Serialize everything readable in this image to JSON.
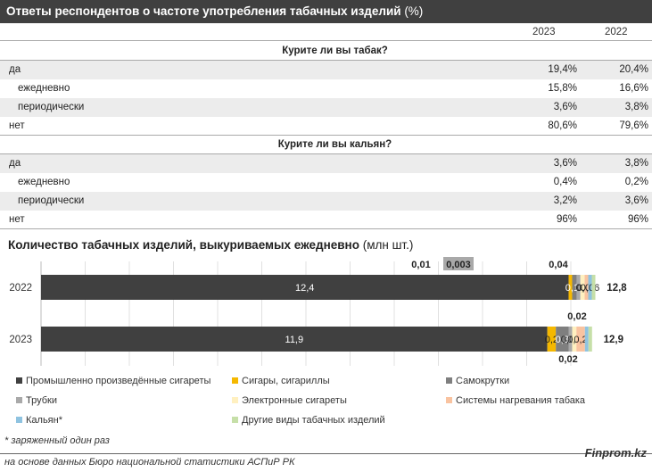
{
  "table": {
    "title": "Ответы респондентов о частоте употребления табачных изделий",
    "title_unit": "(%)",
    "columns": [
      "2023",
      "2022"
    ],
    "sections": [
      {
        "question": "Курите ли вы табак?",
        "rows": [
          {
            "label": "да",
            "indent": false,
            "v2023": "19,4%",
            "v2022": "20,4%"
          },
          {
            "label": "ежедневно",
            "indent": true,
            "v2023": "15,8%",
            "v2022": "16,6%"
          },
          {
            "label": "периодически",
            "indent": true,
            "v2023": "3,6%",
            "v2022": "3,8%"
          },
          {
            "label": "нет",
            "indent": false,
            "v2023": "80,6%",
            "v2022": "79,6%"
          }
        ]
      },
      {
        "question": "Курите ли вы кальян?",
        "rows": [
          {
            "label": "да",
            "indent": false,
            "v2023": "3,6%",
            "v2022": "3,8%"
          },
          {
            "label": "ежедневно",
            "indent": true,
            "v2023": "0,4%",
            "v2022": "0,2%"
          },
          {
            "label": "периодически",
            "indent": true,
            "v2023": "3,2%",
            "v2022": "3,6%"
          },
          {
            "label": "нет",
            "indent": false,
            "v2023": "96%",
            "v2022": "96%"
          }
        ]
      }
    ]
  },
  "chart_data": {
    "type": "bar",
    "orientation": "horizontal",
    "stacked": true,
    "title": "Количество табачных изделий, выкуриваемых ежедневно",
    "title_unit": "(млн шт.)",
    "categories": [
      "2022",
      "2023"
    ],
    "totals": [
      12.8,
      12.9
    ],
    "total_labels": [
      "12,8",
      "12,9"
    ],
    "series": [
      {
        "name": "Промышленно произведённые сигареты",
        "color": "#404040",
        "values": [
          12.4,
          11.9
        ],
        "labels": [
          "12,4",
          "11,9"
        ]
      },
      {
        "name": "Сигары, сигариллы",
        "color": "#f5b800",
        "values": [
          0.01,
          0.2
        ],
        "labels": [
          "0,01",
          "0,2"
        ]
      },
      {
        "name": "Самокрутки",
        "color": "#7f7f7f",
        "values": [
          0.11,
          0.3
        ],
        "labels": [
          "0,11",
          "0,3"
        ]
      },
      {
        "name": "Трубки",
        "color": "#a9a9a9",
        "values": [
          0.003,
          0.07
        ],
        "labels": [
          "0,003",
          "0,07"
        ]
      },
      {
        "name": "Электронные сигареты",
        "color": "#fff0c0",
        "values": [
          0.1,
          0.1
        ],
        "labels": [
          "0,1",
          "0,1"
        ]
      },
      {
        "name": "Системы нагревания табака",
        "color": "#f9c3a0",
        "values": [
          0.08,
          0.2
        ],
        "labels": [
          "0,08",
          "0,2"
        ]
      },
      {
        "name": "Кальян*",
        "color": "#8fc3e0",
        "values": [
          0.06,
          0.02
        ],
        "labels": [
          "0,06",
          "0,02"
        ]
      },
      {
        "name": "Другие виды табачных изделий",
        "color": "#c6dfa8",
        "values": [
          0.04,
          0.02
        ],
        "labels": [
          "0,04",
          "0,02"
        ]
      }
    ],
    "legend_position": "bottom"
  },
  "footnote": "* заряженный один раз",
  "source": "на основе данных Бюро национальной статистики АСПиР РК",
  "brand": "Finprom.kz"
}
